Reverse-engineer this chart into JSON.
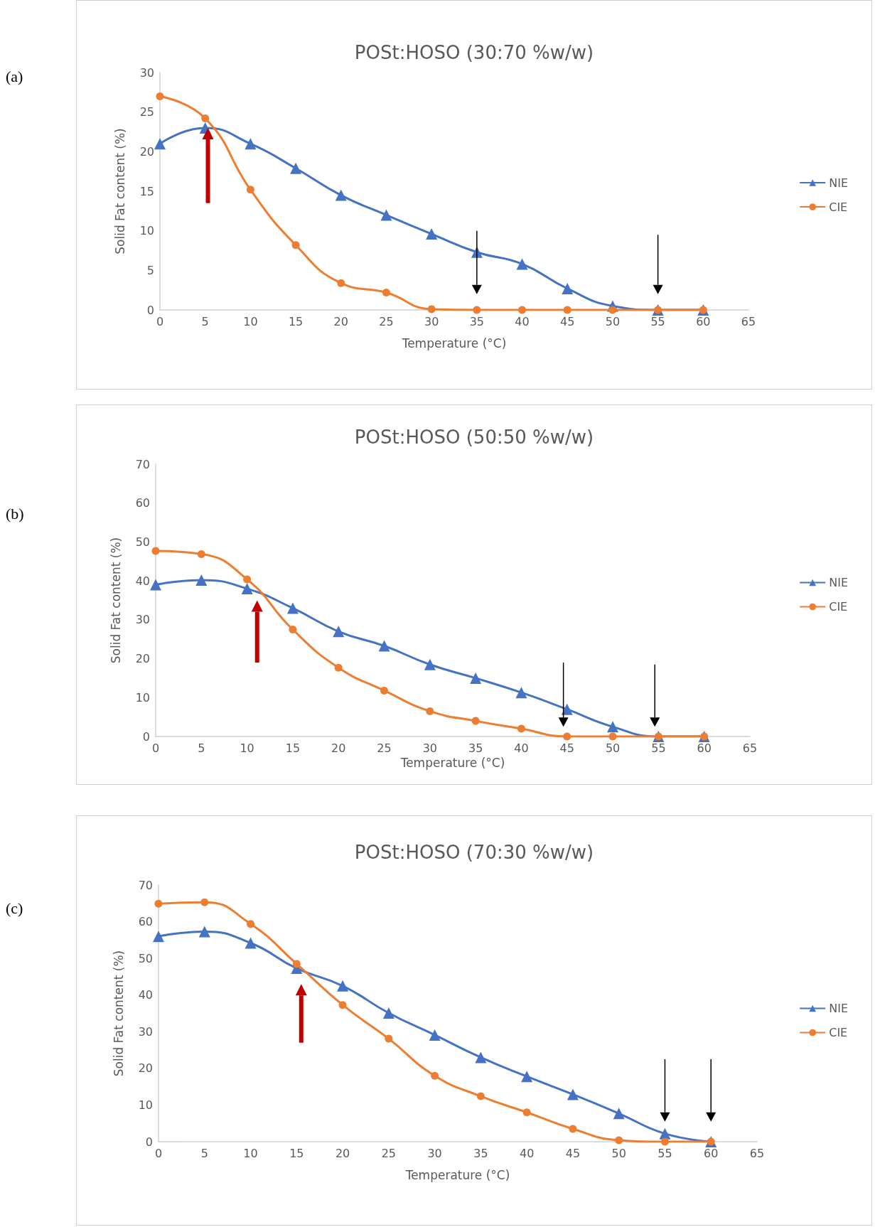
{
  "chart_data": [
    {
      "type": "line",
      "title": "POSt:HOSO (30:70 %w/w)",
      "xlabel": "Temperature (°C)",
      "ylabel": "Solid Fat content (%)",
      "annotations": [
        "(a)"
      ],
      "x": [
        0,
        5,
        10,
        15,
        20,
        25,
        30,
        35,
        40,
        45,
        50,
        55,
        60
      ],
      "series": [
        {
          "name": "NIE",
          "color": "#4472c4",
          "marker": "triangle",
          "values": [
            21,
            23,
            21,
            17.9,
            14.5,
            12,
            9.6,
            7.3,
            5.8,
            2.7,
            0.5,
            0,
            0
          ]
        },
        {
          "name": "CIE",
          "color": "#ed7d31",
          "marker": "circle",
          "values": [
            27,
            24.2,
            15.2,
            8.2,
            3.4,
            2.2,
            0.1,
            0,
            0,
            0,
            0,
            0,
            0
          ]
        }
      ],
      "xlim": [
        0,
        65
      ],
      "xticks": [
        0,
        5,
        10,
        15,
        20,
        25,
        30,
        35,
        40,
        45,
        50,
        55,
        60,
        65
      ],
      "ylim": [
        0,
        30
      ],
      "yticks": [
        0,
        5,
        10,
        15,
        20,
        25,
        30
      ],
      "legend": "right"
    },
    {
      "type": "line",
      "title": "POSt:HOSO (50:50 %w/w)",
      "xlabel": "Temperature (°C)",
      "ylabel": "Solid Fat content (%)",
      "annotations": [
        "(b)"
      ],
      "x": [
        0,
        5,
        10,
        15,
        20,
        25,
        30,
        35,
        40,
        45,
        50,
        55,
        60
      ],
      "series": [
        {
          "name": "NIE",
          "color": "#4472c4",
          "marker": "triangle",
          "values": [
            39,
            40.2,
            38,
            33,
            27,
            23.3,
            18.5,
            15,
            11.3,
            7,
            2.5,
            0,
            0
          ]
        },
        {
          "name": "CIE",
          "color": "#ed7d31",
          "marker": "circle",
          "values": [
            47.7,
            46.9,
            40.4,
            27.5,
            17.7,
            11.8,
            6.5,
            4,
            2,
            0,
            0,
            0,
            0
          ]
        }
      ],
      "xlim": [
        0,
        65
      ],
      "xticks": [
        0,
        5,
        10,
        15,
        20,
        25,
        30,
        35,
        40,
        45,
        50,
        55,
        60,
        65
      ],
      "ylim": [
        0,
        70
      ],
      "yticks": [
        0,
        10,
        20,
        30,
        40,
        50,
        60,
        70
      ],
      "legend": "right"
    },
    {
      "type": "line",
      "title": "POSt:HOSO (70:30 %w/w)",
      "xlabel": "Temperature (°C)",
      "ylabel": "Solid Fat content (%)",
      "annotations": [
        "(c)"
      ],
      "x": [
        0,
        5,
        10,
        15,
        20,
        25,
        30,
        35,
        40,
        45,
        50,
        55,
        60
      ],
      "series": [
        {
          "name": "NIE",
          "color": "#4472c4",
          "marker": "triangle",
          "values": [
            56,
            57.3,
            54.2,
            47.3,
            42.5,
            35.1,
            29.1,
            23,
            17.8,
            12.9,
            7.7,
            2.2,
            0
          ]
        },
        {
          "name": "CIE",
          "color": "#ed7d31",
          "marker": "circle",
          "values": [
            64.9,
            65.3,
            59.4,
            48.5,
            37.3,
            28.1,
            18,
            12.4,
            8,
            3.5,
            0.4,
            0,
            0
          ]
        }
      ],
      "xlim": [
        0,
        65
      ],
      "xticks": [
        0,
        5,
        10,
        15,
        20,
        25,
        30,
        35,
        40,
        45,
        50,
        55,
        60,
        65
      ],
      "ylim": [
        0,
        70
      ],
      "yticks": [
        0,
        10,
        20,
        30,
        40,
        50,
        60,
        70
      ],
      "legend": "right"
    }
  ]
}
